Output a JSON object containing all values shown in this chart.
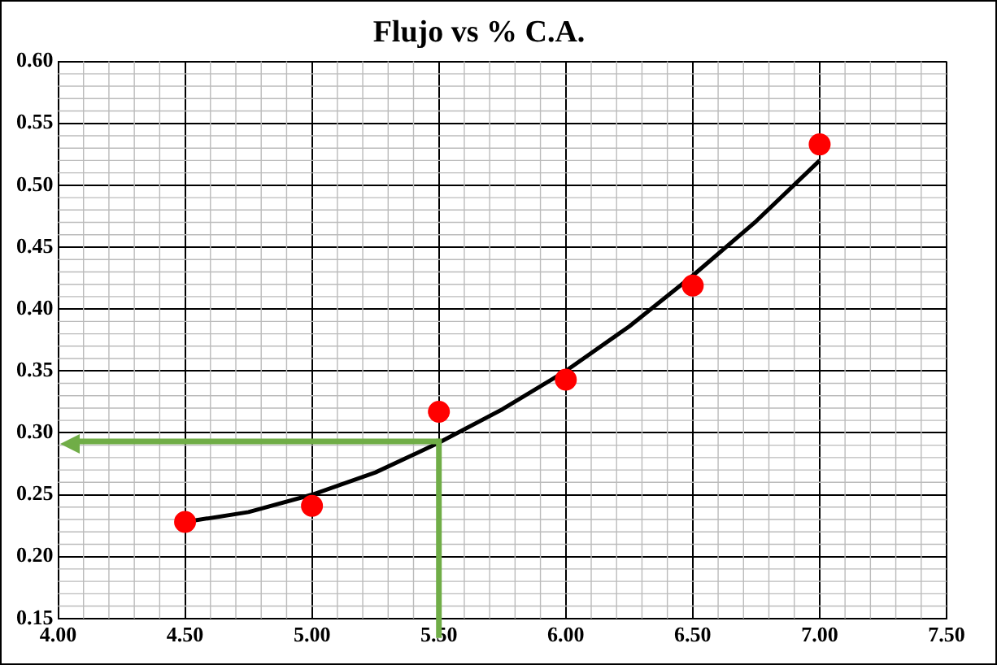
{
  "chart_data": {
    "type": "scatter",
    "title": "Flujo vs % C.A.",
    "x": [
      4.5,
      5.0,
      5.5,
      6.0,
      6.5,
      7.0
    ],
    "series": [
      {
        "color": "#ff0000",
        "marker": "circle",
        "values": [
          0.228,
          0.241,
          0.317,
          0.343,
          0.419,
          0.533
        ]
      },
      {
        "type": "line",
        "color": "#000000",
        "marker": "none",
        "x": [
          4.5,
          4.75,
          5.0,
          5.25,
          5.5,
          5.75,
          6.0,
          6.25,
          6.5,
          6.75,
          7.0
        ],
        "values": [
          0.228,
          0.236,
          0.25,
          0.268,
          0.292,
          0.319,
          0.35,
          0.386,
          0.427,
          0.471,
          0.52
        ]
      }
    ],
    "xlim": [
      4.0,
      7.5
    ],
    "xticks": [
      {
        "value": 4.0,
        "label": "4.00"
      },
      {
        "value": 4.5,
        "label": "4.50"
      },
      {
        "value": 5.0,
        "label": "5.00"
      },
      {
        "value": 5.5,
        "label": "5.50"
      },
      {
        "value": 6.0,
        "label": "6.00"
      },
      {
        "value": 6.5,
        "label": "6.50"
      },
      {
        "value": 7.0,
        "label": "7.00"
      },
      {
        "value": 7.5,
        "label": "7.50"
      }
    ],
    "ylim": [
      0.15,
      0.6
    ],
    "yticks": [
      {
        "value": 0.15,
        "label": "0.15"
      },
      {
        "value": 0.2,
        "label": "0.20"
      },
      {
        "value": 0.25,
        "label": "0.25"
      },
      {
        "value": 0.3,
        "label": "0.30"
      },
      {
        "value": 0.35,
        "label": "0.35"
      },
      {
        "value": 0.4,
        "label": "0.40"
      },
      {
        "value": 0.45,
        "label": "0.45"
      },
      {
        "value": 0.5,
        "label": "0.50"
      },
      {
        "value": 0.55,
        "label": "0.55"
      },
      {
        "value": 0.6,
        "label": "0.60"
      }
    ],
    "grid": true,
    "ref_lines": [
      {
        "axis": "x",
        "value": 5.5,
        "color": "#70ad47"
      },
      {
        "axis": "y",
        "value": 0.293,
        "color": "#70ad47"
      }
    ]
  }
}
